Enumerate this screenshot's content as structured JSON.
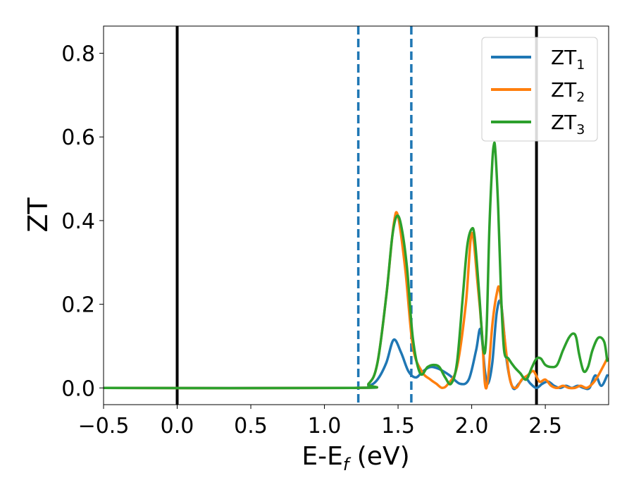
{
  "chart_data": {
    "type": "line",
    "xlabel_main": "E-E",
    "xlabel_sub": "f",
    "xlabel_unit": " (eV)",
    "ylabel": "ZT",
    "xlim": [
      -0.5,
      2.93
    ],
    "ylim": [
      -0.04,
      0.865
    ],
    "xticks": [
      {
        "value": -0.5,
        "label": "−0.5"
      },
      {
        "value": 0.0,
        "label": "0.0"
      },
      {
        "value": 0.5,
        "label": "0.5"
      },
      {
        "value": 1.0,
        "label": "1.0"
      },
      {
        "value": 1.5,
        "label": "1.5"
      },
      {
        "value": 2.0,
        "label": "2.0"
      },
      {
        "value": 2.5,
        "label": "2.5"
      }
    ],
    "yticks": [
      {
        "value": 0.0,
        "label": "0.0"
      },
      {
        "value": 0.2,
        "label": "0.2"
      },
      {
        "value": 0.4,
        "label": "0.4"
      },
      {
        "value": 0.6,
        "label": "0.6"
      },
      {
        "value": 0.8,
        "label": "0.8"
      }
    ],
    "vlines": [
      {
        "x": 0.0,
        "color": "#000000",
        "style": "solid"
      },
      {
        "x": 2.44,
        "color": "#000000",
        "style": "solid"
      },
      {
        "x": 1.23,
        "color": "#1f77b4",
        "style": "dashed"
      },
      {
        "x": 1.59,
        "color": "#1f77b4",
        "style": "dashed"
      }
    ],
    "legend": {
      "placement": "top-right"
    },
    "series": [
      {
        "name": "ZT",
        "subscript": "1",
        "color": "#1f77b4",
        "x": [
          -0.5,
          1.2,
          1.3,
          1.36,
          1.42,
          1.47,
          1.52,
          1.57,
          1.62,
          1.67,
          1.72,
          1.78,
          1.85,
          1.92,
          1.98,
          2.03,
          2.06,
          2.09,
          2.11,
          2.14,
          2.17,
          2.2,
          2.24,
          2.28,
          2.32,
          2.36,
          2.4,
          2.44,
          2.48,
          2.52,
          2.56,
          2.6,
          2.64,
          2.68,
          2.72,
          2.76,
          2.8,
          2.84,
          2.88,
          2.92
        ],
        "y": [
          0.0,
          0.0,
          0.005,
          0.02,
          0.06,
          0.115,
          0.085,
          0.04,
          0.025,
          0.04,
          0.05,
          0.045,
          0.03,
          0.01,
          0.02,
          0.09,
          0.14,
          0.04,
          0.01,
          0.06,
          0.18,
          0.2,
          0.06,
          0.0,
          0.01,
          0.025,
          0.01,
          0.0,
          0.01,
          0.015,
          0.005,
          0.0,
          0.005,
          0.0,
          0.005,
          0.0,
          0.0,
          0.03,
          0.005,
          0.03
        ]
      },
      {
        "name": "ZT",
        "subscript": "2",
        "color": "#ff7f0e",
        "x": [
          -0.5,
          1.2,
          1.3,
          1.36,
          1.42,
          1.47,
          1.5,
          1.55,
          1.6,
          1.66,
          1.72,
          1.76,
          1.8,
          1.84,
          1.9,
          1.96,
          2.0,
          2.04,
          2.07,
          2.09,
          2.11,
          2.14,
          2.17,
          2.19,
          2.22,
          2.26,
          2.3,
          2.34,
          2.38,
          2.42,
          2.46,
          2.5,
          2.54,
          2.58,
          2.62,
          2.66,
          2.7,
          2.74,
          2.78,
          2.82,
          2.86,
          2.92
        ],
        "y": [
          0.0,
          0.0,
          0.01,
          0.06,
          0.22,
          0.39,
          0.41,
          0.28,
          0.1,
          0.04,
          0.02,
          0.01,
          0.0,
          0.01,
          0.05,
          0.2,
          0.37,
          0.25,
          0.13,
          0.01,
          0.02,
          0.15,
          0.225,
          0.235,
          0.13,
          0.02,
          0.0,
          0.02,
          0.03,
          0.04,
          0.015,
          0.02,
          0.005,
          0.0,
          0.005,
          0.0,
          0.0,
          0.005,
          0.0,
          0.01,
          0.03,
          0.07
        ]
      },
      {
        "name": "ZT",
        "subscript": "3",
        "color": "#2ca02c",
        "x": [
          -0.5,
          1.2,
          1.3,
          1.36,
          1.42,
          1.46,
          1.49,
          1.52,
          1.56,
          1.6,
          1.65,
          1.7,
          1.74,
          1.78,
          1.82,
          1.86,
          1.9,
          1.94,
          1.97,
          2.0,
          2.02,
          2.05,
          2.08,
          2.1,
          2.12,
          2.14,
          2.15,
          2.16,
          2.18,
          2.2,
          2.22,
          2.25,
          2.29,
          2.33,
          2.37,
          2.41,
          2.44,
          2.47,
          2.5,
          2.54,
          2.58,
          2.62,
          2.66,
          2.69,
          2.71,
          2.73,
          2.76,
          2.79,
          2.82,
          2.86,
          2.9,
          2.92
        ],
        "y": [
          0.0,
          0.0,
          0.01,
          0.06,
          0.22,
          0.36,
          0.41,
          0.39,
          0.29,
          0.12,
          0.035,
          0.05,
          0.055,
          0.05,
          0.025,
          0.01,
          0.06,
          0.22,
          0.34,
          0.38,
          0.36,
          0.23,
          0.09,
          0.13,
          0.38,
          0.54,
          0.58,
          0.57,
          0.43,
          0.22,
          0.09,
          0.07,
          0.05,
          0.035,
          0.02,
          0.05,
          0.07,
          0.07,
          0.055,
          0.05,
          0.055,
          0.09,
          0.12,
          0.13,
          0.12,
          0.08,
          0.04,
          0.05,
          0.09,
          0.12,
          0.11,
          0.065
        ]
      }
    ]
  }
}
